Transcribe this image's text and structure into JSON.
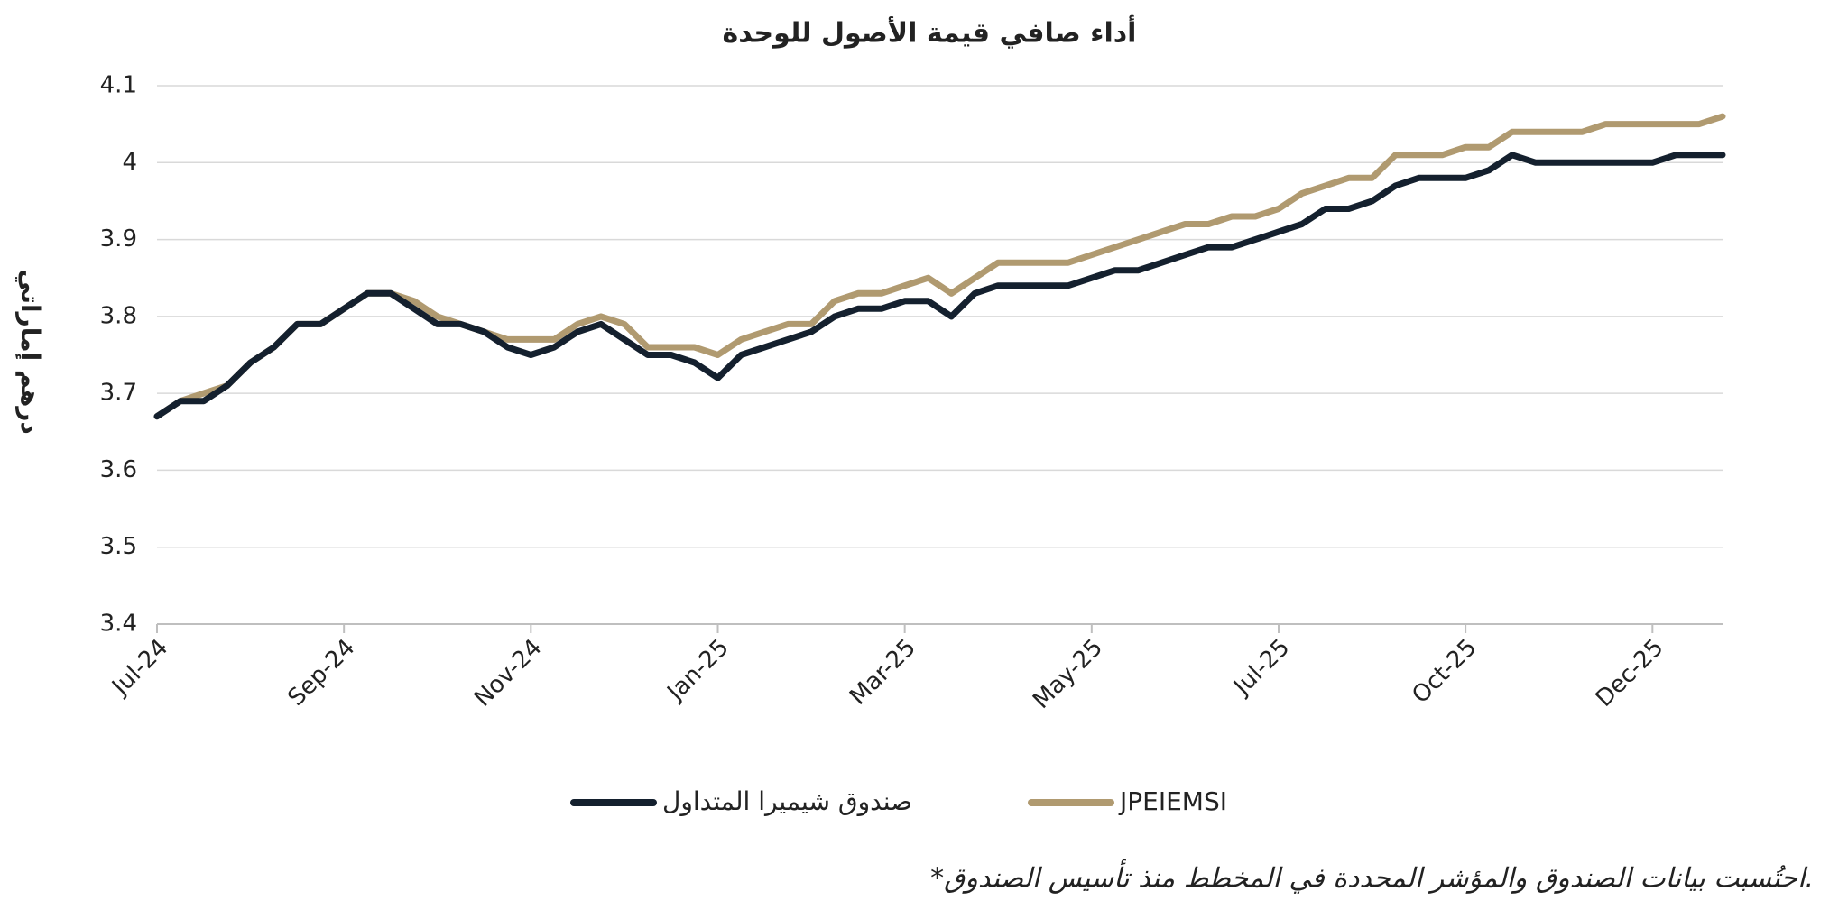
{
  "chart_data": {
    "type": "line",
    "title": "أداء صافي قيمة الأصول للوحدة",
    "y_label": "درهم إماراتي",
    "footnote": "*احتُسبت بيانات الصندوق والمؤشر المحددة في المخطط منذ تأسيس الصندوق.",
    "categories": [
      "Jul-24",
      null,
      null,
      null,
      null,
      null,
      null,
      null,
      "Sep-24",
      null,
      null,
      null,
      null,
      null,
      null,
      null,
      "Nov-24",
      null,
      null,
      null,
      null,
      null,
      null,
      null,
      "Jan-25",
      null,
      null,
      null,
      null,
      null,
      null,
      null,
      "Mar-25",
      null,
      null,
      null,
      null,
      null,
      null,
      null,
      "May-25",
      null,
      null,
      null,
      null,
      null,
      null,
      null,
      "Jul-25",
      null,
      null,
      null,
      null,
      null,
      null,
      null,
      "Oct-25",
      null,
      null,
      null,
      null,
      null,
      null,
      null,
      "Dec-25",
      null,
      null,
      null
    ],
    "series": [
      {
        "name": "صندوق شيميرا المتداول",
        "color": "#14202e",
        "values": [
          3.67,
          3.69,
          3.69,
          3.71,
          3.74,
          3.76,
          3.79,
          3.79,
          3.81,
          3.83,
          3.83,
          3.81,
          3.79,
          3.79,
          3.78,
          3.76,
          3.75,
          3.76,
          3.78,
          3.79,
          3.77,
          3.75,
          3.75,
          3.74,
          3.72,
          3.75,
          3.76,
          3.77,
          3.78,
          3.8,
          3.81,
          3.81,
          3.82,
          3.82,
          3.8,
          3.83,
          3.84,
          3.84,
          3.84,
          3.84,
          3.85,
          3.86,
          3.86,
          3.87,
          3.88,
          3.89,
          3.89,
          3.9,
          3.91,
          3.92,
          3.94,
          3.94,
          3.95,
          3.97,
          3.98,
          3.98,
          3.98,
          3.99,
          4.01,
          4.0,
          4.0,
          4.0,
          4.0,
          4.0,
          4.0,
          4.01,
          4.01,
          4.01
        ]
      },
      {
        "name": "JPEIEMSI",
        "color": "#b09a70",
        "values": [
          3.67,
          3.69,
          3.7,
          3.71,
          3.74,
          3.76,
          3.79,
          3.79,
          3.81,
          3.83,
          3.83,
          3.82,
          3.8,
          3.79,
          3.78,
          3.77,
          3.77,
          3.77,
          3.79,
          3.8,
          3.79,
          3.76,
          3.76,
          3.76,
          3.75,
          3.77,
          3.78,
          3.79,
          3.79,
          3.82,
          3.83,
          3.83,
          3.84,
          3.85,
          3.83,
          3.85,
          3.87,
          3.87,
          3.87,
          3.87,
          3.88,
          3.89,
          3.9,
          3.91,
          3.92,
          3.92,
          3.93,
          3.93,
          3.94,
          3.96,
          3.97,
          3.98,
          3.98,
          4.01,
          4.01,
          4.01,
          4.02,
          4.02,
          4.04,
          4.04,
          4.04,
          4.04,
          4.05,
          4.05,
          4.05,
          4.05,
          4.05,
          4.06
        ]
      }
    ],
    "ylim": [
      3.4,
      4.1
    ],
    "yticks": [
      3.4,
      3.5,
      3.6,
      3.7,
      3.8,
      3.9,
      4,
      4.1
    ],
    "grid": true
  }
}
